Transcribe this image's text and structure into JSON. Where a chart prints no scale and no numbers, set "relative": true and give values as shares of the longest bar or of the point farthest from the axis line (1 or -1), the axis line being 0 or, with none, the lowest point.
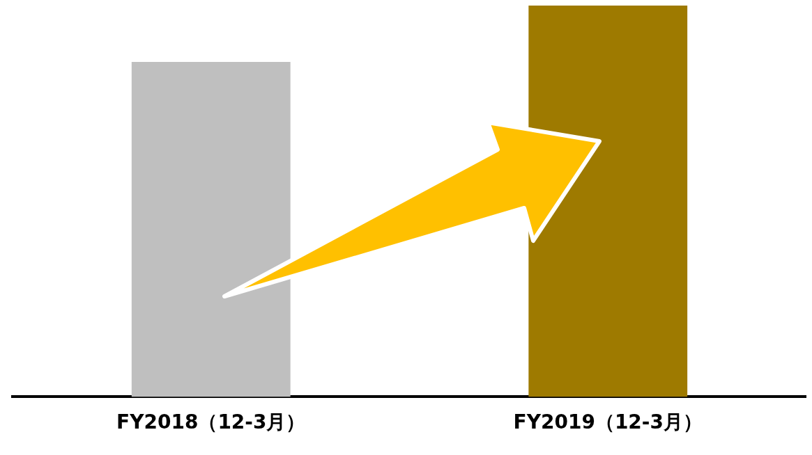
{
  "chart_data": {
    "type": "bar",
    "categories": [
      "FY2018（12-3月）",
      "FY2019（12-3月）"
    ],
    "relative": true,
    "values": [
      0.856,
      1
    ],
    "colors": [
      "#bfbfbf",
      "#9e7a00"
    ],
    "grid": false,
    "legend": false
  }
}
